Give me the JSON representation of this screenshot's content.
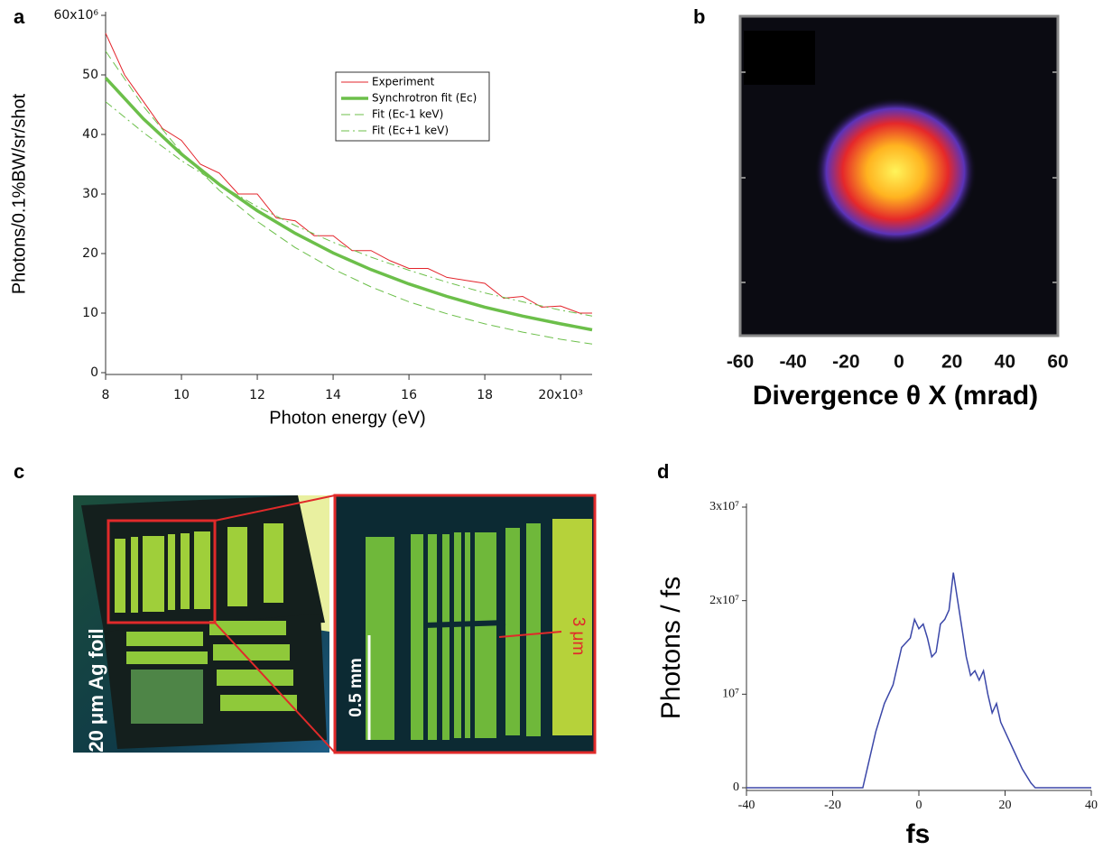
{
  "chart_data": [
    {
      "type": "line",
      "panel_label": "a",
      "xlabel": "Photon energy (eV)",
      "ylabel": "Photons/0.1%BW/sr/shot",
      "xlim": [
        8000,
        20830
      ],
      "ylim": [
        0,
        60
      ],
      "xticks": [
        {
          "value": 8000,
          "label": "8"
        },
        {
          "value": 10000,
          "label": "10"
        },
        {
          "value": 12000,
          "label": "12"
        },
        {
          "value": 14000,
          "label": "14"
        },
        {
          "value": 16000,
          "label": "16"
        },
        {
          "value": 18000,
          "label": "18"
        },
        {
          "value": 20000,
          "label": "20x10³"
        }
      ],
      "yticks": [
        0,
        10,
        20,
        30,
        40,
        50,
        {
          "value": 60,
          "label": "60x10⁶"
        }
      ],
      "series": [
        {
          "name": "Experiment",
          "color": "#e3242b",
          "dash": "solid",
          "x": [
            8000,
            8500,
            9000,
            9500,
            10000,
            10500,
            11000,
            11500,
            12000,
            12500,
            13000,
            13500,
            14000,
            14500,
            15000,
            15500,
            16000,
            16500,
            17000,
            17500,
            18000,
            18500,
            19000,
            19500,
            20000,
            20500,
            20830
          ],
          "values": [
            57,
            50,
            45.5,
            41,
            39,
            35,
            33.5,
            30,
            30,
            26,
            25.5,
            23,
            23,
            20.5,
            20.5,
            18.8,
            17.5,
            17.5,
            16,
            15.5,
            15,
            12.5,
            12.8,
            11,
            11.2,
            10,
            10
          ]
        },
        {
          "name": "Synchrotron fit (Ec)",
          "color": "#6cbf4a",
          "dash": "solid",
          "x": [
            8000,
            9000,
            10000,
            11000,
            12000,
            13000,
            14000,
            15000,
            16000,
            17000,
            18000,
            19000,
            20000,
            20830
          ],
          "values": [
            49.5,
            42.6,
            36.7,
            31.6,
            27.2,
            23.4,
            20.1,
            17.3,
            14.9,
            12.8,
            11.0,
            9.5,
            8.2,
            7.2
          ]
        },
        {
          "name": "Fit (Ec-1 keV)",
          "color": "#6cbf4a",
          "dash": "dashed",
          "x": [
            8000,
            9000,
            10000,
            11000,
            12000,
            13000,
            14000,
            15000,
            16000,
            17000,
            18000,
            19000,
            20000,
            20830
          ],
          "values": [
            54,
            44.7,
            37,
            30.6,
            25.4,
            21,
            17.4,
            14.4,
            11.9,
            9.9,
            8.2,
            6.8,
            5.6,
            4.8
          ]
        },
        {
          "name": "Fit (Ec+1 keV)",
          "color": "#6cbf4a",
          "dash": "dashdot",
          "x": [
            8000,
            9000,
            10000,
            11000,
            12000,
            13000,
            14000,
            15000,
            16000,
            17000,
            18000,
            19000,
            20000,
            20830
          ],
          "values": [
            45.5,
            40.3,
            35.6,
            31.6,
            27.9,
            24.7,
            21.9,
            19.4,
            17.2,
            15.2,
            13.4,
            11.9,
            10.5,
            9.5
          ]
        }
      ]
    },
    {
      "type": "image",
      "panel_label": "b",
      "xlabel": "Divergence θ X (mrad)",
      "xlim": [
        -60,
        60
      ],
      "xticks": [
        -60,
        -40,
        -20,
        0,
        20,
        40,
        60
      ]
    },
    {
      "type": "line",
      "panel_label": "d",
      "xlabel": "fs",
      "ylabel": "Photons / fs",
      "color": "#3b47a8",
      "xlim": [
        -40,
        40
      ],
      "ylim": [
        0,
        30000000
      ],
      "xticks": [
        -40,
        -20,
        0,
        20,
        40
      ],
      "yticks": [
        0,
        {
          "value": 10000000,
          "label": "10⁷"
        },
        {
          "value": 20000000,
          "label": "2x10⁷"
        },
        {
          "value": 30000000,
          "label": "3x10⁷"
        }
      ],
      "x": [
        -40,
        -13,
        -12,
        -10,
        -8,
        -6,
        -4,
        -2,
        -1,
        0,
        1,
        2,
        3,
        4,
        5,
        6,
        7,
        8,
        9,
        10,
        11,
        12,
        13,
        14,
        15,
        16,
        17,
        18,
        19,
        20,
        22,
        24,
        26,
        27,
        40
      ],
      "values": [
        0,
        0,
        2000000,
        6000000,
        9000000,
        11000000,
        15000000,
        16000000,
        18000000,
        17000000,
        17500000,
        16000000,
        14000000,
        14500000,
        17500000,
        18000000,
        19000000,
        23000000,
        20000000,
        17000000,
        14000000,
        12000000,
        12500000,
        11500000,
        12500000,
        10000000,
        8000000,
        9000000,
        7000000,
        6000000,
        4000000,
        2000000,
        500000,
        0,
        0
      ]
    }
  ],
  "image_panel": {
    "panel_label": "c",
    "sample": "20 μm Ag foil",
    "scale_bar": "0.5 mm",
    "feature": "3 μm"
  }
}
